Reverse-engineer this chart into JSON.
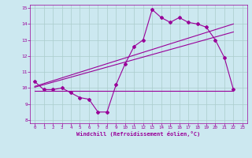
{
  "title": "",
  "xlabel": "Windchill (Refroidissement éolien,°C)",
  "bg_color": "#cce8f0",
  "grid_color": "#aacccc",
  "line_color": "#990099",
  "xlim": [
    -0.5,
    23.5
  ],
  "ylim": [
    7.8,
    15.2
  ],
  "yticks": [
    8,
    9,
    10,
    11,
    12,
    13,
    14,
    15
  ],
  "xticks": [
    0,
    1,
    2,
    3,
    4,
    5,
    6,
    7,
    8,
    9,
    10,
    11,
    12,
    13,
    14,
    15,
    16,
    17,
    18,
    19,
    20,
    21,
    22,
    23
  ],
  "main_x": [
    0,
    1,
    2,
    3,
    4,
    5,
    6,
    7,
    8,
    9,
    10,
    11,
    12,
    13,
    14,
    15,
    16,
    17,
    18,
    19,
    20,
    21,
    22
  ],
  "main_y": [
    10.4,
    9.9,
    9.9,
    10.0,
    9.7,
    9.4,
    9.3,
    8.5,
    8.5,
    10.2,
    11.5,
    12.6,
    13.0,
    14.9,
    14.4,
    14.1,
    14.4,
    14.1,
    14.0,
    13.8,
    13.0,
    11.9,
    9.9
  ],
  "reg_line1_x": [
    0,
    22
  ],
  "reg_line1_y": [
    10.05,
    13.5
  ],
  "reg_line2_x": [
    0,
    22
  ],
  "reg_line2_y": [
    10.1,
    14.0
  ],
  "horiz_line_x": [
    0,
    22
  ],
  "horiz_line_y": [
    9.8,
    9.8
  ],
  "marker": "D",
  "markersize": 2.0,
  "linewidth": 0.8
}
